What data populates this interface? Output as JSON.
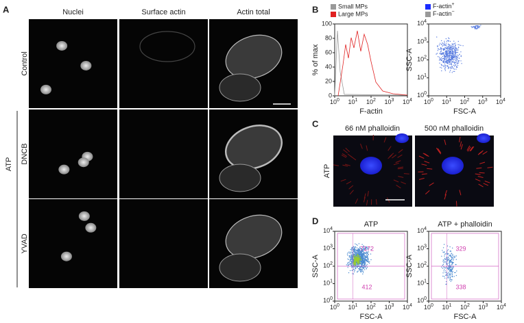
{
  "panel_a": {
    "letter": "A",
    "columns": [
      "Nuclei",
      "Surface actin",
      "Actin total"
    ],
    "rows": [
      "Control",
      "DNCB",
      "YVAD"
    ],
    "group": "ATP"
  },
  "panel_b": {
    "letter": "B",
    "histogram": {
      "legend": [
        "Small MPs",
        "Large MPs"
      ],
      "y_label": "% of max",
      "x_label": "F-actin",
      "y_ticks": [
        "0",
        "20",
        "40",
        "60",
        "80",
        "100"
      ],
      "x_ticks": [
        {
          "base": "10",
          "exp": "0"
        },
        {
          "base": "10",
          "exp": "1"
        },
        {
          "base": "10",
          "exp": "2"
        },
        {
          "base": "10",
          "exp": "3"
        },
        {
          "base": "10",
          "exp": "4"
        }
      ]
    },
    "scatter": {
      "legend": [
        {
          "text": "F-actin",
          "sup": "+"
        },
        {
          "text": "F-actin",
          "sup": "−"
        }
      ],
      "y_label": "SSC-A",
      "x_label": "FSC-A",
      "y_ticks": [
        {
          "base": "10",
          "exp": "0"
        },
        {
          "base": "10",
          "exp": "1"
        },
        {
          "base": "10",
          "exp": "2"
        },
        {
          "base": "10",
          "exp": "3"
        },
        {
          "base": "10",
          "exp": "4"
        }
      ],
      "x_ticks": [
        {
          "base": "10",
          "exp": "0"
        },
        {
          "base": "10",
          "exp": "1"
        },
        {
          "base": "10",
          "exp": "2"
        },
        {
          "base": "10",
          "exp": "3"
        },
        {
          "base": "10",
          "exp": "4"
        }
      ]
    }
  },
  "panel_c": {
    "letter": "C",
    "columns": [
      "66 nM phalloidin",
      "500 nM phalloidin"
    ],
    "row": "ATP"
  },
  "panel_d": {
    "letter": "D",
    "plots": [
      {
        "title": "ATP",
        "y_label": "SSC-A",
        "x_label": "FSC-A",
        "gates": [
          "7172",
          "412"
        ],
        "y_ticks": [
          {
            "base": "10",
            "exp": "0"
          },
          {
            "base": "10",
            "exp": "1"
          },
          {
            "base": "10",
            "exp": "2"
          },
          {
            "base": "10",
            "exp": "3"
          },
          {
            "base": "10",
            "exp": "4"
          }
        ],
        "x_ticks": [
          {
            "base": "10",
            "exp": "0"
          },
          {
            "base": "10",
            "exp": "1"
          },
          {
            "base": "10",
            "exp": "2"
          },
          {
            "base": "10",
            "exp": "3"
          },
          {
            "base": "10",
            "exp": "4"
          }
        ]
      },
      {
        "title": "ATP + phalloidin",
        "y_label": "SSC-A",
        "x_label": "FSC-A",
        "gates": [
          "329",
          "338"
        ],
        "y_ticks": [
          {
            "base": "10",
            "exp": "0"
          },
          {
            "base": "10",
            "exp": "1"
          },
          {
            "base": "10",
            "exp": "2"
          },
          {
            "base": "10",
            "exp": "3"
          },
          {
            "base": "10",
            "exp": "4"
          }
        ],
        "x_ticks": [
          {
            "base": "10",
            "exp": "0"
          },
          {
            "base": "10",
            "exp": "1"
          },
          {
            "base": "10",
            "exp": "2"
          },
          {
            "base": "10",
            "exp": "3"
          },
          {
            "base": "10",
            "exp": "4"
          }
        ]
      }
    ]
  }
}
